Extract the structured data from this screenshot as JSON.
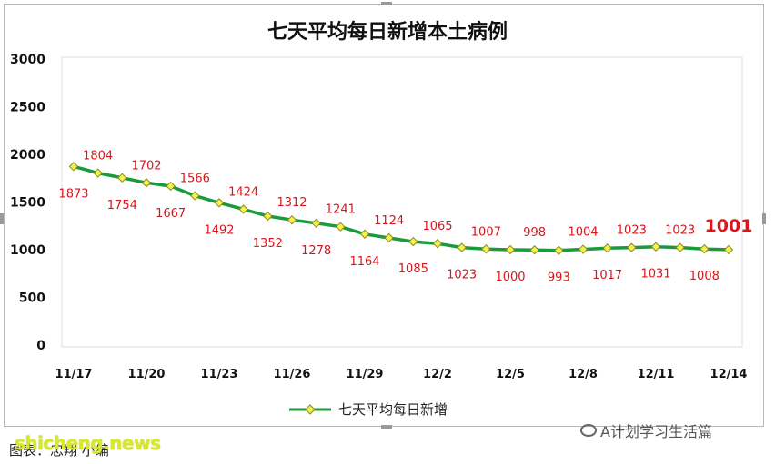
{
  "chart_data": {
    "type": "line",
    "title": "七天平均每日新增本土病例",
    "x": [
      "11/17",
      "11/18",
      "11/19",
      "11/20",
      "11/21",
      "11/22",
      "11/23",
      "11/24",
      "11/25",
      "11/26",
      "11/27",
      "11/28",
      "11/29",
      "11/30",
      "12/1",
      "12/2",
      "12/3",
      "12/4",
      "12/5",
      "12/6",
      "12/7",
      "12/8",
      "12/9",
      "12/10",
      "12/11",
      "12/12",
      "12/13",
      "12/14"
    ],
    "xticks": [
      "11/17",
      "11/20",
      "11/23",
      "11/26",
      "11/29",
      "12/2",
      "12/5",
      "12/8",
      "12/11",
      "12/14"
    ],
    "series": [
      {
        "name": "七天平均每日新增",
        "values": [
          1873,
          1804,
          1754,
          1702,
          1667,
          1566,
          1492,
          1424,
          1352,
          1312,
          1278,
          1241,
          1164,
          1124,
          1085,
          1065,
          1023,
          1007,
          1000,
          998,
          993,
          1004,
          1017,
          1023,
          1031,
          1023,
          1008,
          1001
        ]
      }
    ],
    "ylim": [
      0,
      3000
    ],
    "yticks": [
      "3000",
      "2500",
      "2000",
      "1500",
      "1000",
      "500",
      "0"
    ],
    "grid": false,
    "legend": "bottom",
    "colors": {
      "line": "#1a9a3c",
      "marker": "#f2f24a",
      "label": "#d8161b"
    }
  },
  "watermark": "shicheng.news",
  "credit": "图表：忠翔 小编",
  "wechat_label": "A计划学习生活篇"
}
